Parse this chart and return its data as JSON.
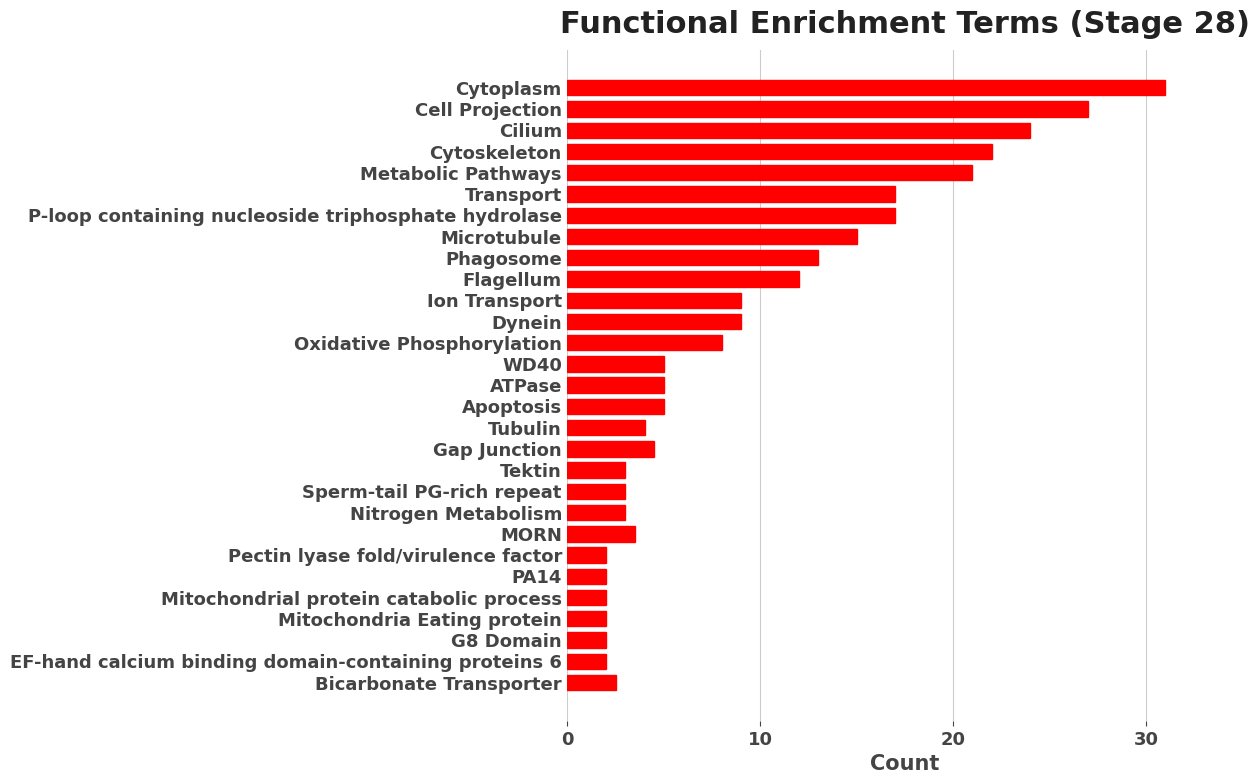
{
  "title": "Functional Enrichment Terms (Stage 28)",
  "xlabel": "Count",
  "ylabel": "",
  "bar_color": "#FF0000",
  "background_color": "#FFFFFF",
  "grid_color": "#CCCCCC",
  "categories": [
    "Cytoplasm",
    "Cell Projection",
    "Cilium",
    "Cytoskeleton",
    "Metabolic Pathways",
    "Transport",
    "P-loop containing nucleoside triphosphate hydrolase",
    "Microtubule",
    "Phagosome",
    "Flagellum",
    "Ion Transport",
    "Dynein",
    "Oxidative Phosphorylation",
    "WD40",
    "ATPase",
    "Apoptosis",
    "Tubulin",
    "Gap Junction",
    "Tektin",
    "Sperm-tail PG-rich repeat",
    "Nitrogen Metabolism",
    "MORN",
    "Pectin lyase fold/virulence factor",
    "PA14",
    "Mitochondrial protein catabolic process",
    "Mitochondria Eating protein",
    "G8 Domain",
    "EF-hand calcium binding domain-containing proteins 6",
    "Bicarbonate Transporter"
  ],
  "values": [
    31,
    27,
    24,
    22,
    21,
    17,
    17,
    15,
    13,
    12,
    9,
    9,
    8,
    5,
    5,
    5,
    4,
    4.5,
    3,
    3,
    3,
    3.5,
    2,
    2,
    2,
    2,
    2,
    2,
    2.5
  ],
  "xlim": [
    0,
    35
  ],
  "title_fontsize": 22,
  "label_fontsize": 15,
  "tick_fontsize": 13,
  "bar_height": 0.72
}
